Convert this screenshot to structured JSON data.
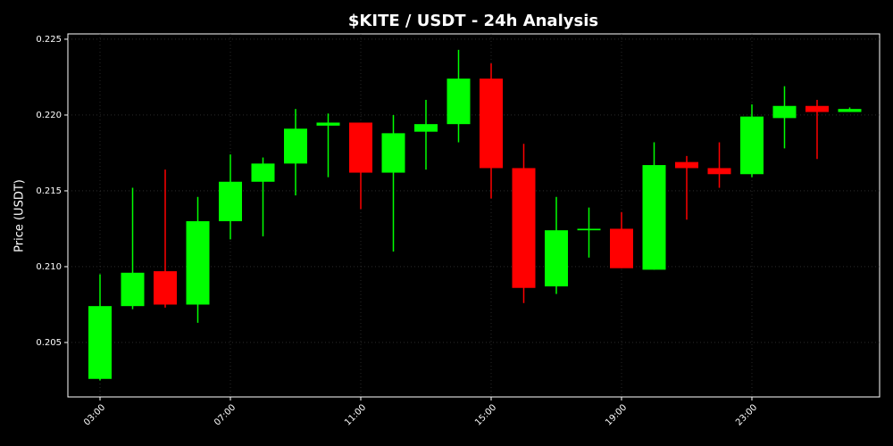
{
  "chart_data": {
    "type": "candlestick",
    "title": "$KITE / USDT - 24h Analysis",
    "y_label": "Price (USDT)",
    "categories": [
      "03:00",
      null,
      null,
      null,
      "07:00",
      null,
      null,
      null,
      "11:00",
      null,
      null,
      null,
      "15:00",
      null,
      null,
      null,
      "19:00",
      null,
      null,
      null,
      "23:00",
      null,
      null,
      null
    ],
    "open": [
      0.2026,
      0.2074,
      0.2097,
      0.2075,
      0.213,
      0.2156,
      0.2168,
      0.2193,
      0.2195,
      0.2162,
      0.2189,
      0.2194,
      0.2224,
      0.2165,
      0.2087,
      0.2124,
      0.2125,
      0.2098,
      0.2169,
      0.2165,
      0.2161,
      0.2198,
      0.2206,
      0.2202
    ],
    "high": [
      0.2095,
      0.2152,
      0.2164,
      0.2146,
      0.2174,
      0.2172,
      0.2204,
      0.2201,
      0.2195,
      0.22,
      0.221,
      0.2243,
      0.2234,
      0.2181,
      0.2146,
      0.2139,
      0.2136,
      0.2182,
      0.2173,
      0.2182,
      0.2207,
      0.2219,
      0.221,
      0.2205
    ],
    "low": [
      0.2025,
      0.2072,
      0.2073,
      0.2063,
      0.2118,
      0.212,
      0.2147,
      0.2159,
      0.2138,
      0.211,
      0.2164,
      0.2182,
      0.2145,
      0.2076,
      0.2082,
      0.2106,
      0.2099,
      0.2098,
      0.2131,
      0.2152,
      0.2159,
      0.2178,
      0.2171,
      0.2202
    ],
    "close": [
      0.2074,
      0.2096,
      0.2075,
      0.213,
      0.2156,
      0.2168,
      0.2191,
      0.2195,
      0.2162,
      0.2188,
      0.2194,
      0.2224,
      0.2165,
      0.2086,
      0.2124,
      0.2125,
      0.2099,
      0.2167,
      0.2165,
      0.2161,
      0.2199,
      0.2206,
      0.2202,
      0.2204
    ],
    "up_color": "#00ff00",
    "down_color": "#ff0000",
    "ylim": [
      0.20141,
      0.22535
    ],
    "yticks": [
      0.205,
      {
        "value": 0.21,
        "label": "0.210"
      },
      0.215,
      {
        "value": 0.22,
        "label": "0.220"
      },
      0.225
    ],
    "grid": true
  }
}
